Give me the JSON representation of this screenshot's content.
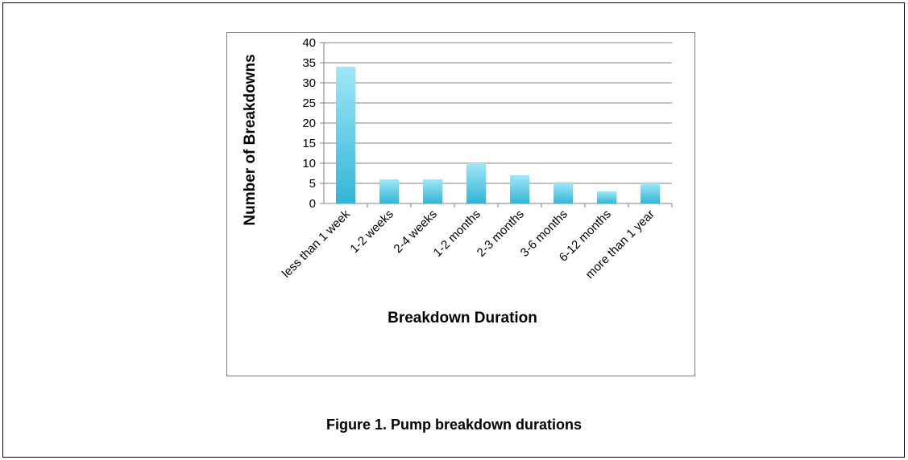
{
  "caption": "Figure 1. Pump breakdown durations",
  "chart_data": {
    "type": "bar",
    "categories": [
      "less than 1 week",
      "1-2 weeks",
      "2-4 weeks",
      "1-2 months",
      "2-3 months",
      "3-6 months",
      "6-12 months",
      "more than 1 year"
    ],
    "values": [
      34,
      6,
      6,
      10,
      7,
      5,
      3,
      5
    ],
    "title": "",
    "xlabel": "Breakdown Duration",
    "ylabel": "Number of Breakdowns",
    "ylim": [
      0,
      40
    ],
    "yticks": [
      0,
      5,
      10,
      15,
      20,
      25,
      30,
      35,
      40
    ],
    "grid": true,
    "legend": "none",
    "colors": {
      "bar_top": "#9fe7f8",
      "bar_bottom": "#33b5d6",
      "grid": "#808080"
    }
  }
}
